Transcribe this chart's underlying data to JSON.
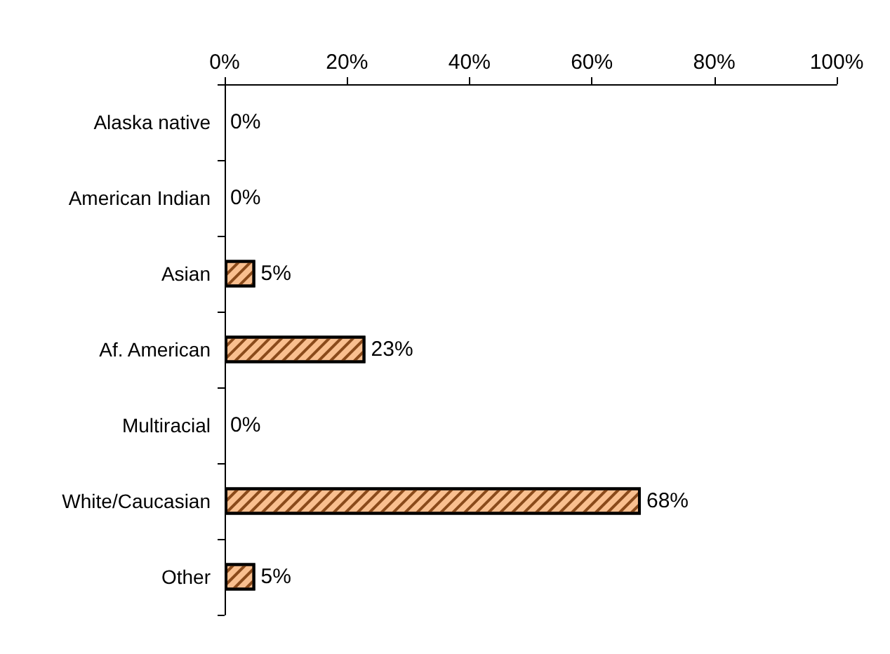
{
  "chart_data": {
    "type": "bar",
    "orientation": "horizontal",
    "categories": [
      "Alaska native",
      "American Indian",
      "Asian",
      "Af. American",
      "Multiracial",
      "White/Caucasian",
      "Other"
    ],
    "values": [
      0,
      0,
      5,
      23,
      0,
      68,
      5
    ],
    "value_labels": [
      "0%",
      "0%",
      "5%",
      "23%",
      "0%",
      "68%",
      "5%"
    ],
    "color": "#f9bf8f",
    "xlim": [
      0,
      100
    ],
    "xticks": [
      {
        "value": 0,
        "label": "0%"
      },
      {
        "value": 20,
        "label": "20%"
      },
      {
        "value": 40,
        "label": "40%"
      },
      {
        "value": 60,
        "label": "60%"
      },
      {
        "value": 80,
        "label": "80%"
      },
      {
        "value": 100,
        "label": "100%"
      }
    ],
    "grid": false
  }
}
